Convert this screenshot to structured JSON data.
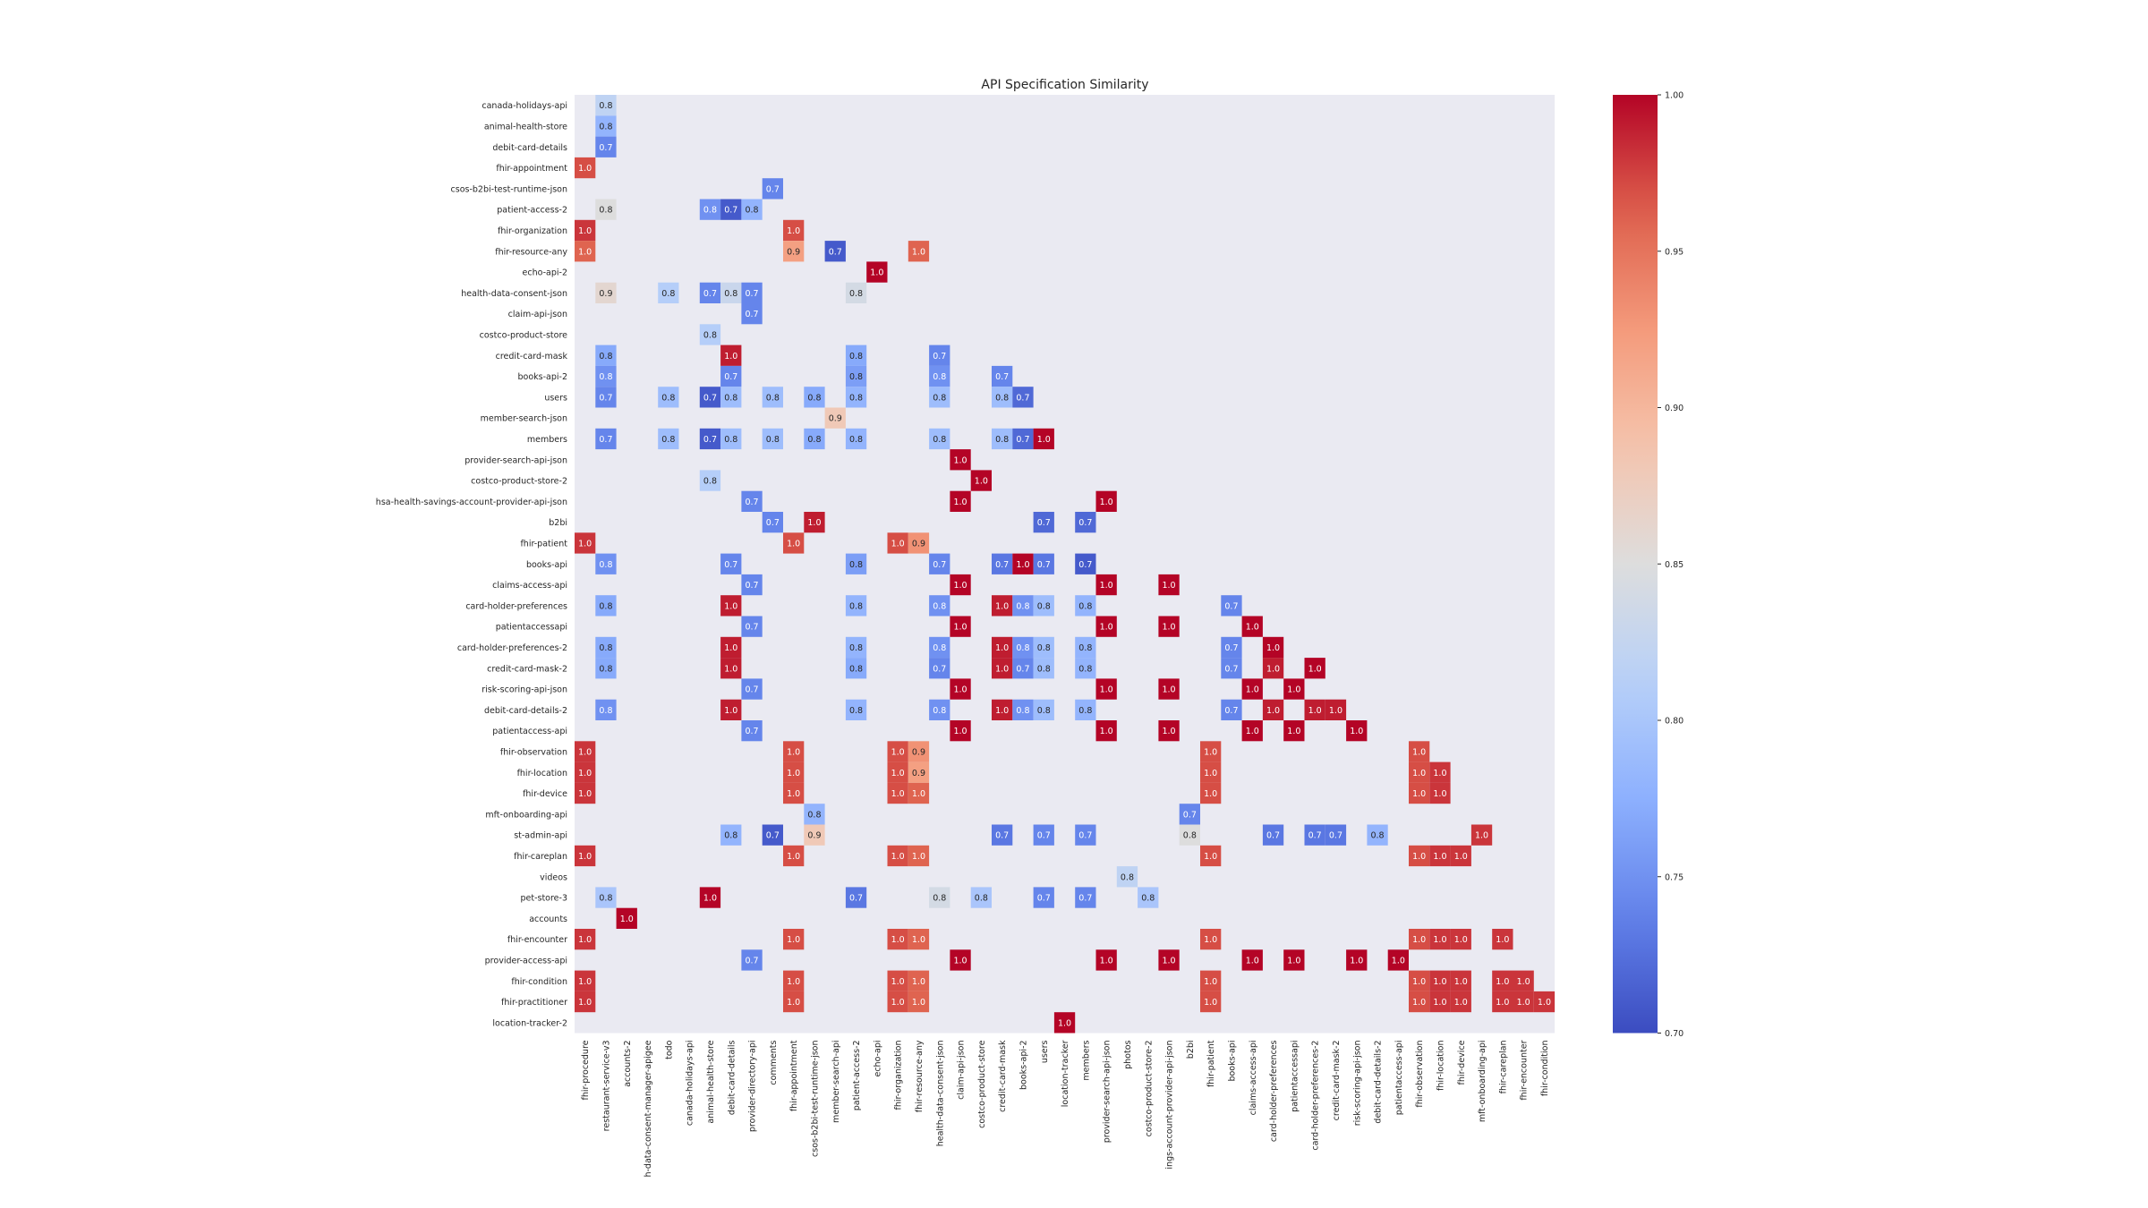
{
  "chart_data": {
    "type": "heatmap",
    "title": "API Specification Similarity",
    "xlabel": "",
    "ylabel": "",
    "row_labels": [
      "canada-holidays-api",
      "animal-health-store",
      "debit-card-details",
      "fhir-appointment",
      "csos-b2bi-test-runtime-json",
      "patient-access-2",
      "fhir-organization",
      "fhir-resource-any",
      "echo-api-2",
      "health-data-consent-json",
      "claim-api-json",
      "costco-product-store",
      "credit-card-mask",
      "books-api-2",
      "users",
      "member-search-json",
      "members",
      "provider-search-api-json",
      "costco-product-store-2",
      "hsa-health-savings-account-provider-api-json",
      "b2bi",
      "fhir-patient",
      "books-api",
      "claims-access-api",
      "card-holder-preferences",
      "patientaccessapi",
      "card-holder-preferences-2",
      "credit-card-mask-2",
      "risk-scoring-api-json",
      "debit-card-details-2",
      "patientaccess-api",
      "fhir-observation",
      "fhir-location",
      "fhir-device",
      "mft-onboarding-api",
      "st-admin-api",
      "fhir-careplan",
      "videos",
      "pet-store-3",
      "accounts",
      "fhir-encounter",
      "provider-access-api",
      "fhir-condition",
      "fhir-practitioner",
      "location-tracker-2"
    ],
    "column_labels": [
      "fhir-procedure",
      "restaurant-service-v3",
      "accounts-2",
      "h-data-consent-manager-apigee",
      "todo",
      "canada-holidays-api",
      "animal-health-store",
      "debit-card-details",
      "provider-directory-api",
      "comments",
      "fhir-appointment",
      "csos-b2bi-test-runtime-json",
      "member-search-api",
      "patient-access-2",
      "echo-api",
      "fhir-organization",
      "fhir-resource-any",
      "health-data-consent-json",
      "claim-api-json",
      "costco-product-store",
      "credit-card-mask",
      "books-api-2",
      "users",
      "location-tracker",
      "members",
      "provider-search-api-json",
      "photos",
      "costco-product-store-2",
      "ings-account-provider-api-json",
      "b2bi",
      "fhir-patient",
      "books-api",
      "claims-access-api",
      "card-holder-preferences",
      "patientaccessapi",
      "card-holder-preferences-2",
      "credit-card-mask-2",
      "risk-scoring-api-json",
      "debit-card-details-2",
      "patientaccess-api",
      "fhir-observation",
      "fhir-location",
      "fhir-device",
      "mft-onboarding-api",
      "fhir-careplan",
      "fhir-encounter",
      "fhir-condition"
    ],
    "cells": [
      [
        0,
        1,
        0.82
      ],
      [
        1,
        1,
        0.78
      ],
      [
        2,
        1,
        0.74
      ],
      [
        3,
        0,
        0.97
      ],
      [
        4,
        9,
        0.74
      ],
      [
        5,
        1,
        0.85
      ],
      [
        5,
        6,
        0.75
      ],
      [
        5,
        7,
        0.71
      ],
      [
        5,
        8,
        0.78
      ],
      [
        6,
        0,
        0.98
      ],
      [
        6,
        10,
        0.97
      ],
      [
        7,
        0,
        0.96
      ],
      [
        7,
        10,
        0.92
      ],
      [
        7,
        12,
        0.71
      ],
      [
        7,
        16,
        0.96
      ],
      [
        8,
        14,
        1.0
      ],
      [
        9,
        1,
        0.86
      ],
      [
        9,
        4,
        0.81
      ],
      [
        9,
        6,
        0.74
      ],
      [
        9,
        7,
        0.83
      ],
      [
        9,
        8,
        0.74
      ],
      [
        9,
        13,
        0.84
      ],
      [
        10,
        8,
        0.74
      ],
      [
        11,
        6,
        0.81
      ],
      [
        12,
        1,
        0.77
      ],
      [
        12,
        7,
        0.99
      ],
      [
        12,
        13,
        0.77
      ],
      [
        12,
        17,
        0.74
      ],
      [
        13,
        1,
        0.75
      ],
      [
        13,
        7,
        0.74
      ],
      [
        13,
        13,
        0.76
      ],
      [
        13,
        17,
        0.75
      ],
      [
        13,
        20,
        0.74
      ],
      [
        14,
        1,
        0.74
      ],
      [
        14,
        4,
        0.79
      ],
      [
        14,
        6,
        0.71
      ],
      [
        14,
        7,
        0.79
      ],
      [
        14,
        9,
        0.79
      ],
      [
        14,
        11,
        0.77
      ],
      [
        14,
        13,
        0.78
      ],
      [
        14,
        17,
        0.79
      ],
      [
        14,
        20,
        0.79
      ],
      [
        14,
        21,
        0.72
      ],
      [
        15,
        12,
        0.88
      ],
      [
        16,
        1,
        0.74
      ],
      [
        16,
        4,
        0.79
      ],
      [
        16,
        6,
        0.71
      ],
      [
        16,
        7,
        0.79
      ],
      [
        16,
        9,
        0.79
      ],
      [
        16,
        11,
        0.77
      ],
      [
        16,
        13,
        0.78
      ],
      [
        16,
        17,
        0.79
      ],
      [
        16,
        20,
        0.79
      ],
      [
        16,
        21,
        0.72
      ],
      [
        16,
        22,
        1.0
      ],
      [
        17,
        18,
        1.0
      ],
      [
        18,
        6,
        0.81
      ],
      [
        18,
        19,
        1.0
      ],
      [
        19,
        8,
        0.74
      ],
      [
        19,
        18,
        1.0
      ],
      [
        19,
        25,
        1.0
      ],
      [
        20,
        9,
        0.74
      ],
      [
        20,
        11,
        0.99
      ],
      [
        20,
        22,
        0.72
      ],
      [
        20,
        24,
        0.72
      ],
      [
        21,
        0,
        0.98
      ],
      [
        21,
        10,
        0.97
      ],
      [
        21,
        15,
        0.97
      ],
      [
        21,
        16,
        0.93
      ],
      [
        22,
        1,
        0.75
      ],
      [
        22,
        7,
        0.74
      ],
      [
        22,
        13,
        0.76
      ],
      [
        22,
        17,
        0.74
      ],
      [
        22,
        20,
        0.73
      ],
      [
        22,
        21,
        1.0
      ],
      [
        22,
        22,
        0.73
      ],
      [
        22,
        24,
        0.71
      ],
      [
        23,
        8,
        0.74
      ],
      [
        23,
        18,
        1.0
      ],
      [
        23,
        25,
        1.0
      ],
      [
        23,
        28,
        1.0
      ],
      [
        24,
        1,
        0.77
      ],
      [
        24,
        7,
        0.99
      ],
      [
        24,
        13,
        0.78
      ],
      [
        24,
        17,
        0.75
      ],
      [
        24,
        20,
        0.99
      ],
      [
        24,
        21,
        0.75
      ],
      [
        24,
        22,
        0.79
      ],
      [
        24,
        24,
        0.78
      ],
      [
        24,
        31,
        0.74
      ],
      [
        25,
        8,
        0.74
      ],
      [
        25,
        18,
        1.0
      ],
      [
        25,
        25,
        1.0
      ],
      [
        25,
        28,
        1.0
      ],
      [
        25,
        32,
        1.0
      ],
      [
        26,
        1,
        0.77
      ],
      [
        26,
        7,
        0.99
      ],
      [
        26,
        13,
        0.78
      ],
      [
        26,
        17,
        0.75
      ],
      [
        26,
        20,
        0.99
      ],
      [
        26,
        21,
        0.75
      ],
      [
        26,
        22,
        0.79
      ],
      [
        26,
        24,
        0.78
      ],
      [
        26,
        31,
        0.74
      ],
      [
        26,
        33,
        1.0
      ],
      [
        27,
        1,
        0.77
      ],
      [
        27,
        7,
        0.99
      ],
      [
        27,
        13,
        0.77
      ],
      [
        27,
        17,
        0.74
      ],
      [
        27,
        20,
        0.99
      ],
      [
        27,
        21,
        0.74
      ],
      [
        27,
        22,
        0.79
      ],
      [
        27,
        24,
        0.78
      ],
      [
        27,
        31,
        0.74
      ],
      [
        27,
        33,
        0.99
      ],
      [
        27,
        35,
        1.0
      ],
      [
        28,
        8,
        0.74
      ],
      [
        28,
        18,
        1.0
      ],
      [
        28,
        25,
        1.0
      ],
      [
        28,
        28,
        1.0
      ],
      [
        28,
        32,
        1.0
      ],
      [
        28,
        34,
        1.0
      ],
      [
        29,
        1,
        0.75
      ],
      [
        29,
        7,
        0.99
      ],
      [
        29,
        13,
        0.78
      ],
      [
        29,
        17,
        0.75
      ],
      [
        29,
        20,
        0.99
      ],
      [
        29,
        21,
        0.75
      ],
      [
        29,
        22,
        0.79
      ],
      [
        29,
        24,
        0.78
      ],
      [
        29,
        31,
        0.74
      ],
      [
        29,
        33,
        0.99
      ],
      [
        29,
        35,
        0.99
      ],
      [
        29,
        36,
        0.99
      ],
      [
        30,
        8,
        0.74
      ],
      [
        30,
        18,
        1.0
      ],
      [
        30,
        25,
        1.0
      ],
      [
        30,
        28,
        1.0
      ],
      [
        30,
        32,
        1.0
      ],
      [
        30,
        34,
        1.0
      ],
      [
        30,
        37,
        1.0
      ],
      [
        31,
        0,
        0.98
      ],
      [
        31,
        10,
        0.97
      ],
      [
        31,
        15,
        0.97
      ],
      [
        31,
        16,
        0.93
      ],
      [
        31,
        30,
        0.97
      ],
      [
        31,
        40,
        0.97
      ],
      [
        32,
        0,
        0.98
      ],
      [
        32,
        10,
        0.97
      ],
      [
        32,
        15,
        0.97
      ],
      [
        32,
        16,
        0.92
      ],
      [
        32,
        30,
        0.97
      ],
      [
        32,
        40,
        0.97
      ],
      [
        32,
        41,
        0.98
      ],
      [
        33,
        0,
        0.98
      ],
      [
        33,
        10,
        0.97
      ],
      [
        33,
        15,
        0.97
      ],
      [
        33,
        16,
        0.96
      ],
      [
        33,
        30,
        0.97
      ],
      [
        33,
        40,
        0.97
      ],
      [
        33,
        41,
        0.98
      ],
      [
        34,
        11,
        0.78
      ],
      [
        34,
        29,
        0.74
      ],
      [
        35,
        7,
        0.78
      ],
      [
        35,
        9,
        0.71
      ],
      [
        35,
        11,
        0.88
      ],
      [
        35,
        20,
        0.73
      ],
      [
        35,
        22,
        0.74
      ],
      [
        35,
        24,
        0.74
      ],
      [
        35,
        29,
        0.85
      ],
      [
        35,
        33,
        0.73
      ],
      [
        35,
        35,
        0.73
      ],
      [
        35,
        36,
        0.73
      ],
      [
        35,
        38,
        0.78
      ],
      [
        35,
        43,
        0.98
      ],
      [
        36,
        0,
        0.98
      ],
      [
        36,
        10,
        0.97
      ],
      [
        36,
        15,
        0.97
      ],
      [
        36,
        16,
        0.96
      ],
      [
        36,
        30,
        0.97
      ],
      [
        36,
        40,
        0.97
      ],
      [
        36,
        41,
        0.98
      ],
      [
        36,
        42,
        0.98
      ],
      [
        37,
        26,
        0.82
      ],
      [
        38,
        1,
        0.8
      ],
      [
        38,
        6,
        1.0
      ],
      [
        38,
        13,
        0.73
      ],
      [
        38,
        17,
        0.84
      ],
      [
        38,
        19,
        0.8
      ],
      [
        38,
        22,
        0.74
      ],
      [
        38,
        24,
        0.74
      ],
      [
        38,
        27,
        0.8
      ],
      [
        39,
        2,
        1.0
      ],
      [
        40,
        0,
        0.98
      ],
      [
        40,
        10,
        0.97
      ],
      [
        40,
        15,
        0.97
      ],
      [
        40,
        16,
        0.96
      ],
      [
        40,
        30,
        0.97
      ],
      [
        40,
        40,
        0.97
      ],
      [
        40,
        41,
        0.98
      ],
      [
        40,
        42,
        0.98
      ],
      [
        40,
        44,
        0.98
      ],
      [
        41,
        8,
        0.74
      ],
      [
        41,
        18,
        1.0
      ],
      [
        41,
        25,
        1.0
      ],
      [
        41,
        28,
        1.0
      ],
      [
        41,
        32,
        1.0
      ],
      [
        41,
        34,
        1.0
      ],
      [
        41,
        37,
        1.0
      ],
      [
        41,
        39,
        1.0
      ],
      [
        42,
        0,
        0.98
      ],
      [
        42,
        10,
        0.97
      ],
      [
        42,
        15,
        0.97
      ],
      [
        42,
        16,
        0.96
      ],
      [
        42,
        30,
        0.97
      ],
      [
        42,
        40,
        0.97
      ],
      [
        42,
        41,
        0.98
      ],
      [
        42,
        42,
        0.98
      ],
      [
        42,
        44,
        0.98
      ],
      [
        42,
        45,
        0.98
      ],
      [
        43,
        0,
        0.98
      ],
      [
        43,
        10,
        0.97
      ],
      [
        43,
        15,
        0.97
      ],
      [
        43,
        16,
        0.96
      ],
      [
        43,
        30,
        0.97
      ],
      [
        43,
        40,
        0.97
      ],
      [
        43,
        41,
        0.98
      ],
      [
        43,
        42,
        0.98
      ],
      [
        43,
        44,
        0.98
      ],
      [
        43,
        45,
        0.98
      ],
      [
        43,
        46,
        0.98
      ],
      [
        44,
        23,
        1.0
      ]
    ],
    "color_scale": {
      "min": 0.7,
      "max": 1.0,
      "colormap": "coolwarm"
    },
    "colorbar_ticks": [
      "0.70",
      "0.75",
      "0.80",
      "0.85",
      "0.90",
      "0.95",
      "1.00"
    ],
    "annotation_format": "one decimal",
    "plot_background": "#eaeaf2",
    "grid": false
  }
}
